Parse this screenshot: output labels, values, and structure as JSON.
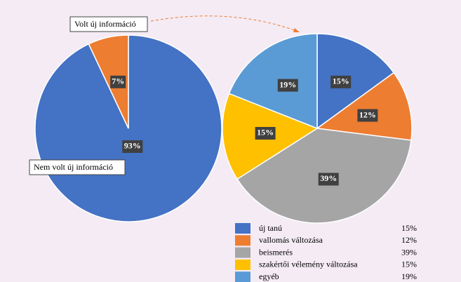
{
  "chart_data": [
    {
      "type": "pie",
      "categories": [
        "Nem volt új információ",
        "Volt új információ"
      ],
      "values": [
        93,
        7
      ],
      "value_labels": [
        "93%",
        "7%"
      ],
      "colors": [
        "#4472c4",
        "#ed7d31"
      ]
    },
    {
      "type": "pie",
      "categories": [
        "új tanú",
        "vallomás változása",
        "beismerés",
        "szakértői vélemény változása",
        "egyéb"
      ],
      "values": [
        15,
        12,
        39,
        15,
        19
      ],
      "value_labels": [
        "15%",
        "12%",
        "39%",
        "15%",
        "19%"
      ],
      "colors": [
        "#4472c4",
        "#ed7d31",
        "#a5a5a5",
        "#ffc000",
        "#5b9bd5"
      ],
      "legend": "bottom right"
    }
  ]
}
